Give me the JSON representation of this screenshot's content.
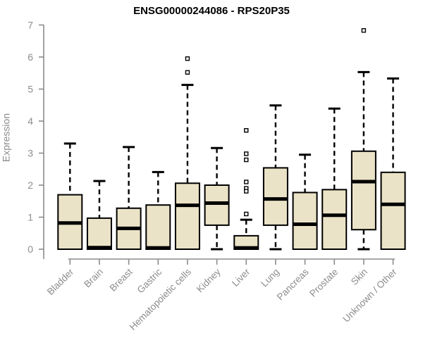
{
  "chart_data": {
    "type": "boxplot",
    "title": "ENSG00000244086 - RPS20P35",
    "ylabel": "Expression",
    "xlabel": "",
    "ylim": [
      0,
      7
    ],
    "yticks": [
      0,
      1,
      2,
      3,
      4,
      5,
      6,
      7
    ],
    "grid": false,
    "legend": "none",
    "categories": [
      "Bladder",
      "Brain",
      "Breast",
      "Gastric",
      "Hematopoietic cells",
      "Kidney",
      "Liver",
      "Lung",
      "Pancreas",
      "Prostate",
      "Skin",
      "Unknown / Other"
    ],
    "series": [
      {
        "category": "Bladder",
        "whisker_low": 0,
        "q1": 0,
        "median": 0.82,
        "q3": 1.7,
        "whisker_high": 3.3,
        "outliers": []
      },
      {
        "category": "Brain",
        "whisker_low": 0,
        "q1": 0,
        "median": 0.05,
        "q3": 0.97,
        "whisker_high": 2.13,
        "outliers": []
      },
      {
        "category": "Breast",
        "whisker_low": 0,
        "q1": 0,
        "median": 0.65,
        "q3": 1.28,
        "whisker_high": 3.19,
        "outliers": []
      },
      {
        "category": "Gastric",
        "whisker_low": 0,
        "q1": 0,
        "median": 0.04,
        "q3": 1.38,
        "whisker_high": 2.41,
        "outliers": []
      },
      {
        "category": "Hematopoietic cells",
        "whisker_low": 0,
        "q1": 0,
        "median": 1.37,
        "q3": 2.06,
        "whisker_high": 5.13,
        "outliers": [
          5.95,
          5.52
        ]
      },
      {
        "category": "Kidney",
        "whisker_low": 0,
        "q1": 0.75,
        "median": 1.44,
        "q3": 2.0,
        "whisker_high": 3.16,
        "outliers": []
      },
      {
        "category": "Liver",
        "whisker_low": 0,
        "q1": 0,
        "median": 0.04,
        "q3": 0.42,
        "whisker_high": 0.92,
        "outliers": [
          3.71,
          2.98,
          2.79,
          2.1,
          1.9,
          1.81,
          1.1
        ]
      },
      {
        "category": "Lung",
        "whisker_low": 0,
        "q1": 0.75,
        "median": 1.57,
        "q3": 2.54,
        "whisker_high": 4.49,
        "outliers": []
      },
      {
        "category": "Pancreas",
        "whisker_low": 0,
        "q1": 0,
        "median": 0.78,
        "q3": 1.77,
        "whisker_high": 2.95,
        "outliers": []
      },
      {
        "category": "Prostate",
        "whisker_low": 0,
        "q1": 0,
        "median": 1.06,
        "q3": 1.86,
        "whisker_high": 4.39,
        "outliers": []
      },
      {
        "category": "Skin",
        "whisker_low": 0,
        "q1": 0.61,
        "median": 2.11,
        "q3": 3.06,
        "whisker_high": 5.53,
        "outliers": [
          6.83
        ]
      },
      {
        "category": "Unknown / Other",
        "whisker_low": 0,
        "q1": 0,
        "median": 1.4,
        "q3": 2.4,
        "whisker_high": 5.33,
        "outliers": []
      }
    ]
  },
  "colors": {
    "background": "#ffffff",
    "box_fill": "#ebe3c7",
    "box_border": "#000000",
    "median": "#000000",
    "whisker": "#000000",
    "outlier_stroke": "#000000",
    "outlier_fill": "#ffffff",
    "axis": "#8c8c8c",
    "tick_label": "#8c8c8c",
    "title": "#000000"
  }
}
